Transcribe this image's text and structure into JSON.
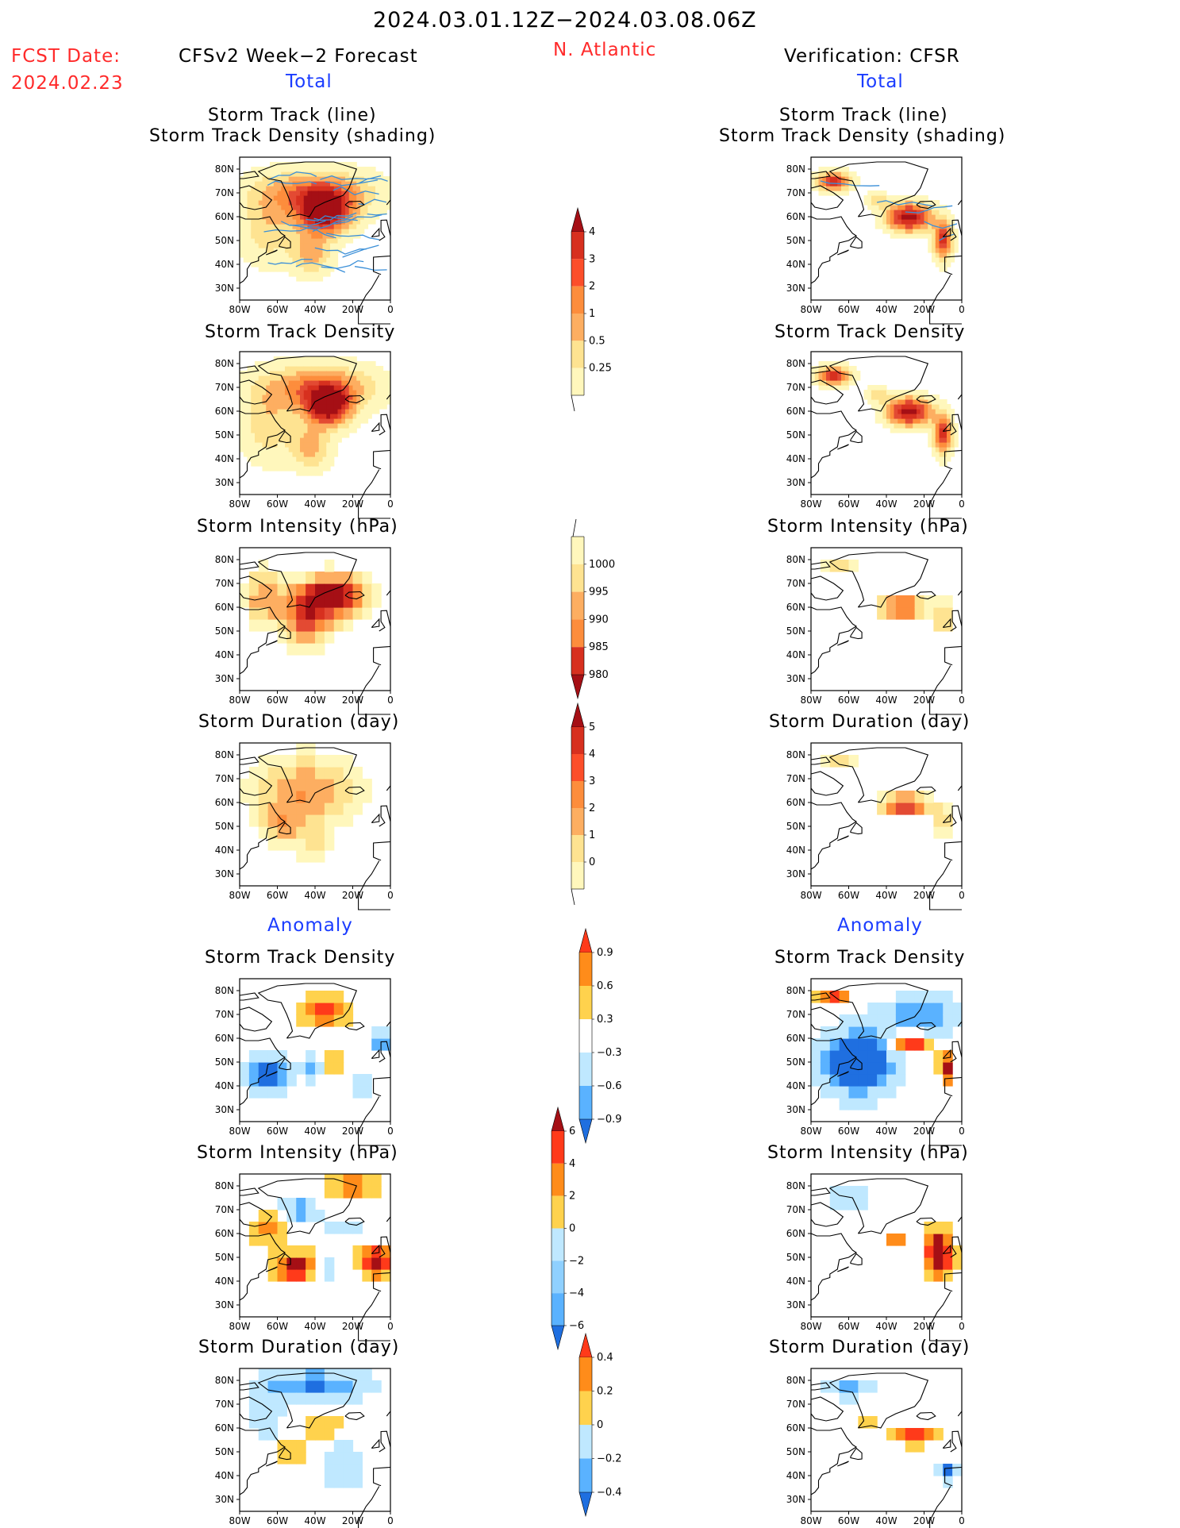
{
  "header": {
    "date_range": "2024.03.01.12Z−2024.03.08.06Z",
    "fcst_label": "FCST Date:",
    "fcst_date": "2024.02.23",
    "left_title": "CFSv2 Week−2 Forecast",
    "region": "N. Atlantic",
    "right_title": "Verification: CFSR"
  },
  "sections": {
    "total": "Total",
    "anomaly": "Anomaly"
  },
  "panel_titles": {
    "track_line": "Storm Track (line)",
    "track_density_shading": "Storm Track Density (shading)",
    "track_density": "Storm Track Density",
    "intensity": "Storm Intensity (hPa)",
    "duration": "Storm Duration (day)"
  },
  "axes": {
    "lat_ticks": [
      "80N",
      "70N",
      "60N",
      "50N",
      "40N",
      "30N"
    ],
    "lon_ticks": [
      "80W",
      "60W",
      "40W",
      "20W",
      "0"
    ]
  },
  "colors": {
    "coast": "#000000",
    "track_line": "#3a8fd8"
  },
  "chart_data": [
    {
      "type": "heatmap",
      "column": "CFSv2 Week−2 Forecast",
      "section": "Total",
      "title": "Storm Track (line) / Storm Track Density (shading)",
      "xlim": [
        -80,
        0
      ],
      "ylim": [
        25,
        85
      ],
      "peak": "~4 near 62N 35W"
    },
    {
      "type": "heatmap",
      "column": "CFSv2 Week−2 Forecast",
      "section": "Total",
      "title": "Storm Track Density",
      "xlim": [
        -80,
        0
      ],
      "ylim": [
        25,
        85
      ]
    },
    {
      "type": "heatmap",
      "column": "CFSv2 Week−2 Forecast",
      "section": "Total",
      "title": "Storm Intensity (hPa)",
      "xlim": [
        -80,
        0
      ],
      "ylim": [
        25,
        85
      ]
    },
    {
      "type": "heatmap",
      "column": "CFSv2 Week−2 Forecast",
      "section": "Total",
      "title": "Storm Duration (day)",
      "xlim": [
        -80,
        0
      ],
      "ylim": [
        25,
        85
      ]
    },
    {
      "type": "heatmap",
      "column": "CFSv2 Week−2 Forecast",
      "section": "Anomaly",
      "title": "Storm Track Density",
      "xlim": [
        -80,
        0
      ],
      "ylim": [
        25,
        85
      ]
    },
    {
      "type": "heatmap",
      "column": "CFSv2 Week−2 Forecast",
      "section": "Anomaly",
      "title": "Storm Intensity (hPa)",
      "xlim": [
        -80,
        0
      ],
      "ylim": [
        25,
        85
      ]
    },
    {
      "type": "heatmap",
      "column": "CFSv2 Week−2 Forecast",
      "section": "Anomaly",
      "title": "Storm Duration (day)",
      "xlim": [
        -80,
        0
      ],
      "ylim": [
        25,
        85
      ]
    },
    {
      "type": "heatmap",
      "column": "Verification: CFSR",
      "section": "Total",
      "title": "Storm Track (line) / Storm Track Density (shading)",
      "xlim": [
        -80,
        0
      ],
      "ylim": [
        25,
        85
      ]
    },
    {
      "type": "heatmap",
      "column": "Verification: CFSR",
      "section": "Total",
      "title": "Storm Track Density",
      "xlim": [
        -80,
        0
      ],
      "ylim": [
        25,
        85
      ]
    },
    {
      "type": "heatmap",
      "column": "Verification: CFSR",
      "section": "Total",
      "title": "Storm Intensity (hPa)",
      "xlim": [
        -80,
        0
      ],
      "ylim": [
        25,
        85
      ]
    },
    {
      "type": "heatmap",
      "column": "Verification: CFSR",
      "section": "Total",
      "title": "Storm Duration (day)",
      "xlim": [
        -80,
        0
      ],
      "ylim": [
        25,
        85
      ]
    },
    {
      "type": "heatmap",
      "column": "Verification: CFSR",
      "section": "Anomaly",
      "title": "Storm Track Density",
      "xlim": [
        -80,
        0
      ],
      "ylim": [
        25,
        85
      ]
    },
    {
      "type": "heatmap",
      "column": "Verification: CFSR",
      "section": "Anomaly",
      "title": "Storm Intensity (hPa)",
      "xlim": [
        -80,
        0
      ],
      "ylim": [
        25,
        85
      ]
    },
    {
      "type": "heatmap",
      "column": "Verification: CFSR",
      "section": "Anomaly",
      "title": "Storm Duration (day)",
      "xlim": [
        -80,
        0
      ],
      "ylim": [
        25,
        85
      ]
    }
  ],
  "colorbars": [
    {
      "name": "track-density-total",
      "labels": [
        "4",
        "3",
        "2",
        "1",
        "0.5",
        "0.25"
      ],
      "colors": [
        "#a50f15",
        "#d7301f",
        "#fc4e2a",
        "#fd8d3c",
        "#fdae61",
        "#fee391",
        "#fff7bc"
      ]
    },
    {
      "name": "intensity-total",
      "labels": [
        "1000",
        "995",
        "990",
        "985",
        "980"
      ],
      "colors": [
        "#fff7bc",
        "#fee391",
        "#fdae61",
        "#fd8d3c",
        "#d7301f",
        "#a50f15"
      ]
    },
    {
      "name": "duration-total",
      "labels": [
        "5",
        "4",
        "3",
        "2",
        "1",
        "0"
      ],
      "colors": [
        "#a50f15",
        "#d7301f",
        "#fc4e2a",
        "#fd8d3c",
        "#fdae61",
        "#fee391",
        "#fff7bc"
      ]
    },
    {
      "name": "track-density-anom",
      "labels": [
        "0.9",
        "0.6",
        "0.3",
        "−0.3",
        "−0.6",
        "−0.9"
      ],
      "colors": [
        "#ff3a1a",
        "#ff8c1a",
        "#ffd24d",
        "#ffffff",
        "#bfe8ff",
        "#5ab2ff",
        "#1f6fe0"
      ]
    },
    {
      "name": "intensity-anom",
      "labels": [
        "6",
        "4",
        "2",
        "0",
        "−2",
        "−4",
        "−6"
      ],
      "colors": [
        "#a50f15",
        "#ff3a1a",
        "#ff8c1a",
        "#ffd24d",
        "#bfe8ff",
        "#8fd0ff",
        "#5ab2ff",
        "#1f6fe0"
      ]
    },
    {
      "name": "duration-anom",
      "labels": [
        "0.4",
        "0.2",
        "0",
        "−0.2",
        "−0.4"
      ],
      "colors": [
        "#ff3a1a",
        "#ff8c1a",
        "#ffd24d",
        "#bfe8ff",
        "#5ab2ff",
        "#1f6fe0"
      ]
    }
  ]
}
